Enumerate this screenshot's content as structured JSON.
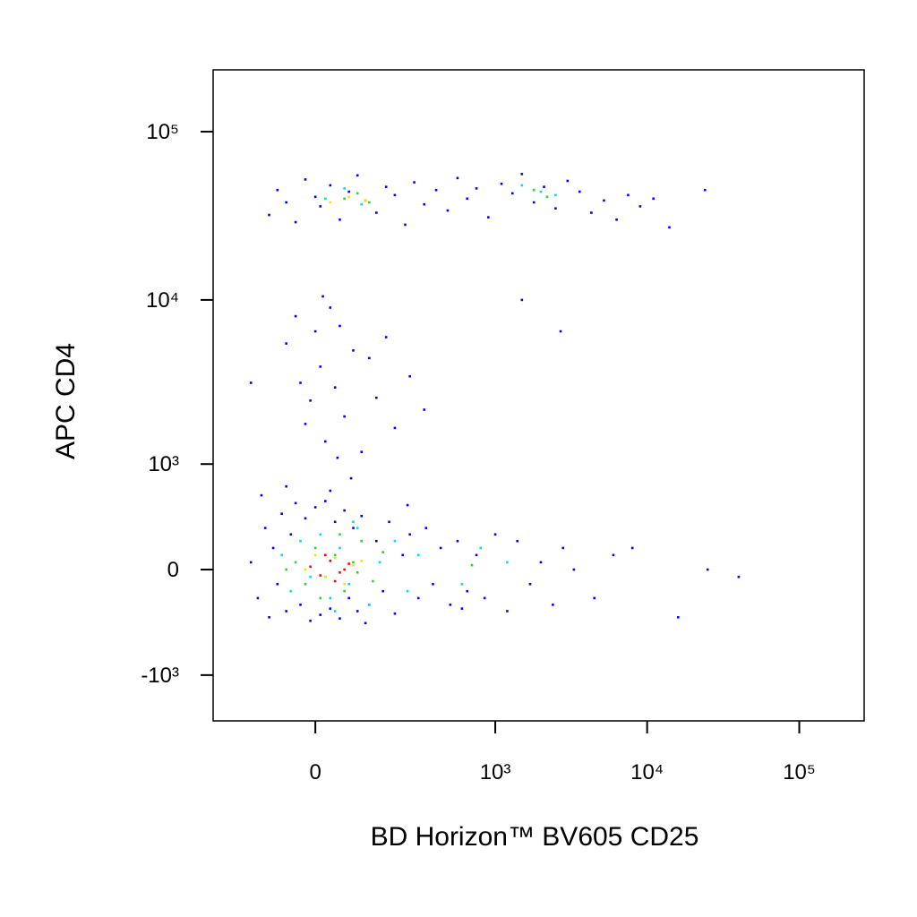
{
  "chart_data": {
    "type": "scatter",
    "x_label": "BD Horizon™ BV605 CD25",
    "y_label": "APC CD4",
    "scale": "biexponential",
    "xlim": [
      -296,
      267000
    ],
    "ylim": [
      -1950,
      233000
    ],
    "xticks": [
      0,
      {
        "value": 1000,
        "label": "10³"
      },
      {
        "value": 10000,
        "label": "10⁴"
      },
      {
        "value": 100000,
        "label": "10⁵"
      }
    ],
    "yticks": [
      {
        "value": -1000,
        "label": "-10³"
      },
      0,
      {
        "value": 1000,
        "label": "10³"
      },
      {
        "value": 10000,
        "label": "10⁴"
      },
      {
        "value": 100000,
        "label": "10⁵"
      }
    ],
    "series": [
      {
        "color": "#0000ff",
        "x": [
          -100,
          -80,
          -60,
          -40,
          -20,
          0,
          10,
          30,
          50,
          70,
          90,
          110,
          140,
          170,
          200,
          240,
          280,
          330,
          400,
          480,
          560,
          650,
          750,
          900,
          1100,
          1300,
          1500,
          1800,
          2100,
          2500,
          3000,
          3600,
          4300,
          5200,
          6300,
          7500,
          9000,
          11000,
          14000,
          24000,
          -60,
          -40,
          -30,
          -20,
          -10,
          0,
          10,
          20,
          30,
          40,
          50,
          60,
          80,
          100,
          120,
          140,
          170,
          200,
          260,
          330,
          -150,
          15,
          45,
          75,
          1500,
          2700,
          -150,
          -130,
          -110,
          -100,
          -90,
          -80,
          -70,
          -60,
          -50,
          -40,
          -30,
          -20,
          -10,
          0,
          10,
          20,
          30,
          40,
          50,
          60,
          70,
          80,
          90,
          100,
          120,
          140,
          160,
          180,
          200,
          230,
          260,
          300,
          340,
          380,
          430,
          500,
          560,
          650,
          750,
          850,
          1000,
          1200,
          1400,
          1700,
          2000,
          2400,
          2800,
          3300,
          4500,
          6000,
          8000,
          16000,
          25000,
          40000,
          -120,
          -60,
          30,
          110,
          250,
          600
        ],
        "y": [
          32000,
          45000,
          38000,
          29000,
          52000,
          41000,
          36000,
          48000,
          30000,
          44000,
          55000,
          39000,
          33000,
          47000,
          42000,
          28000,
          50000,
          37000,
          45000,
          34000,
          53000,
          40000,
          46000,
          31000,
          49000,
          43000,
          56000,
          38000,
          47000,
          35000,
          51000,
          44000,
          33000,
          39000,
          30000,
          42000,
          36000,
          40000,
          27000,
          45000,
          5500,
          8000,
          3200,
          1800,
          2500,
          6500,
          4000,
          1400,
          9000,
          3000,
          7000,
          2000,
          5000,
          1200,
          4500,
          2600,
          6000,
          1700,
          3500,
          2200,
          3200,
          10500,
          1100,
          800,
          10000,
          6500,
          50,
          -200,
          300,
          -350,
          150,
          -100,
          420,
          -300,
          250,
          520,
          -250,
          380,
          -380,
          480,
          -330,
          540,
          -280,
          350,
          -360,
          450,
          -200,
          300,
          -300,
          400,
          -250,
          200,
          -150,
          350,
          -320,
          100,
          250,
          -200,
          300,
          -100,
          150,
          -250,
          200,
          -150,
          100,
          -200,
          250,
          -300,
          200,
          -100,
          50,
          -250,
          150,
          0,
          -200,
          100,
          150,
          -350,
          0,
          -50,
          600,
          700,
          650,
          -400,
          500,
          -280
        ]
      },
      {
        "color": "#00e0e0",
        "x": [
          -70,
          -50,
          -30,
          -10,
          10,
          30,
          50,
          70,
          90,
          120,
          150,
          200,
          250,
          300,
          20,
          60,
          100,
          1500,
          2000,
          600,
          800,
          1200,
          40,
          80,
          2500
        ],
        "y": [
          100,
          -150,
          200,
          -50,
          250,
          -200,
          150,
          -100,
          300,
          -250,
          50,
          200,
          -150,
          100,
          40000,
          46000,
          37000,
          48000,
          44000,
          -100,
          150,
          50,
          -300,
          350,
          42000
        ]
      },
      {
        "color": "#30d030",
        "x": [
          -40,
          -20,
          0,
          20,
          40,
          60,
          80,
          100,
          130,
          160,
          -60,
          10,
          50,
          90,
          60,
          90,
          120,
          1800,
          2200,
          700
        ],
        "y": [
          50,
          -100,
          150,
          -50,
          100,
          -150,
          50,
          200,
          -80,
          120,
          0,
          -200,
          250,
          -20,
          40000,
          43000,
          38000,
          45000,
          41000,
          30
        ]
      },
      {
        "color": "#e8e800",
        "x": [
          -20,
          0,
          20,
          40,
          60,
          80,
          100,
          30,
          70,
          110
        ],
        "y": [
          0,
          100,
          -50,
          80,
          -100,
          30,
          60,
          38000,
          41000,
          39000
        ]
      },
      {
        "color": "#ff0000",
        "x": [
          -10,
          10,
          30,
          50,
          70,
          20,
          40,
          60
        ],
        "y": [
          20,
          -40,
          60,
          -20,
          40,
          100,
          -80,
          0
        ]
      }
    ]
  }
}
